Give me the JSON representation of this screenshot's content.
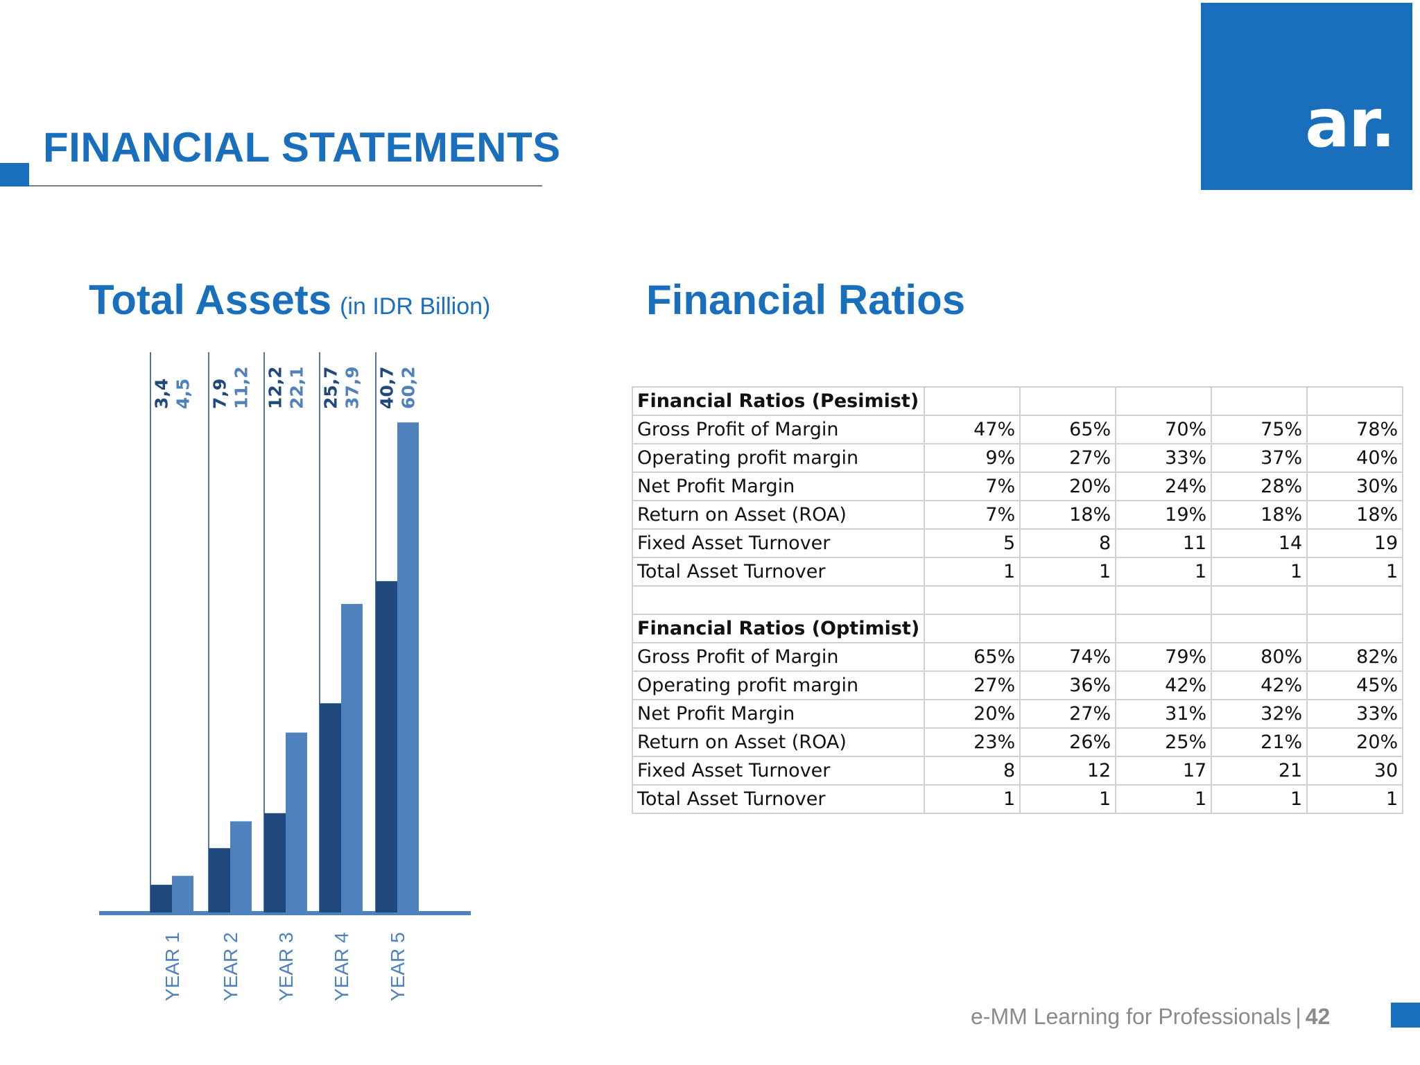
{
  "header": {
    "title": "FINANCIAL STATEMENTS"
  },
  "logo": {
    "text": "ar."
  },
  "colors": {
    "accent": "#1a6fbd",
    "series_pessimist": "#1f497d",
    "series_optimist": "#4f81bd",
    "table_border": "#d0d0d0",
    "footer_text": "#8a8a8a"
  },
  "assets_section": {
    "title": "Total Assets",
    "subtitle": "(in IDR Billion)"
  },
  "ratios_section": {
    "title": "Financial Ratios"
  },
  "chart_data": {
    "type": "bar",
    "title": "Total Assets",
    "subtitle": "(in IDR Billion)",
    "categories": [
      "YEAR 1",
      "YEAR 2",
      "YEAR 3",
      "YEAR 4",
      "YEAR 5"
    ],
    "series": [
      {
        "values": [
          3.4,
          7.9,
          12.2,
          25.7,
          40.7
        ],
        "labels": [
          "3,4",
          "7,9",
          "12,2",
          "25,7",
          "40,7"
        ],
        "color": "#1f497d"
      },
      {
        "values": [
          4.5,
          11.2,
          22.1,
          37.9,
          60.2
        ],
        "labels": [
          "4,5",
          "11,2",
          "22,1",
          "37,9",
          "60,2"
        ],
        "color": "#4f81bd"
      }
    ],
    "legend": "none",
    "grid": false
  },
  "ratio_table": {
    "rows": [
      {
        "label": "Financial Ratios (Pesimist)",
        "section": true,
        "values": [
          "",
          "",
          "",
          "",
          ""
        ]
      },
      {
        "label": "Gross Profit of Margin",
        "values": [
          "47%",
          "65%",
          "70%",
          "75%",
          "78%"
        ]
      },
      {
        "label": "Operating profit margin",
        "values": [
          "9%",
          "27%",
          "33%",
          "37%",
          "40%"
        ]
      },
      {
        "label": "Net Profit Margin",
        "values": [
          "7%",
          "20%",
          "24%",
          "28%",
          "30%"
        ]
      },
      {
        "label": "Return on Asset (ROA)",
        "values": [
          "7%",
          "18%",
          "19%",
          "18%",
          "18%"
        ]
      },
      {
        "label": "Fixed Asset Turnover",
        "values": [
          "5",
          "8",
          "11",
          "14",
          "19"
        ]
      },
      {
        "label": "Total Asset Turnover",
        "values": [
          "1",
          "1",
          "1",
          "1",
          "1"
        ]
      },
      {
        "label": "",
        "values": [
          "",
          "",
          "",
          "",
          ""
        ]
      },
      {
        "label": "Financial Ratios (Optimist)",
        "section": true,
        "values": [
          "",
          "",
          "",
          "",
          ""
        ]
      },
      {
        "label": "Gross Profit of Margin",
        "values": [
          "65%",
          "74%",
          "79%",
          "80%",
          "82%"
        ]
      },
      {
        "label": "Operating profit margin",
        "values": [
          "27%",
          "36%",
          "42%",
          "42%",
          "45%"
        ]
      },
      {
        "label": "Net Profit Margin",
        "values": [
          "20%",
          "27%",
          "31%",
          "32%",
          "33%"
        ]
      },
      {
        "label": "Return on Asset (ROA)",
        "values": [
          "23%",
          "26%",
          "25%",
          "21%",
          "20%"
        ]
      },
      {
        "label": "Fixed Asset Turnover",
        "values": [
          "8",
          "12",
          "17",
          "21",
          "30"
        ]
      },
      {
        "label": "Total Asset Turnover",
        "values": [
          "1",
          "1",
          "1",
          "1",
          "1"
        ]
      }
    ]
  },
  "footer": {
    "text": "e-MM Learning for Professionals",
    "separator": "|",
    "page": "42"
  }
}
